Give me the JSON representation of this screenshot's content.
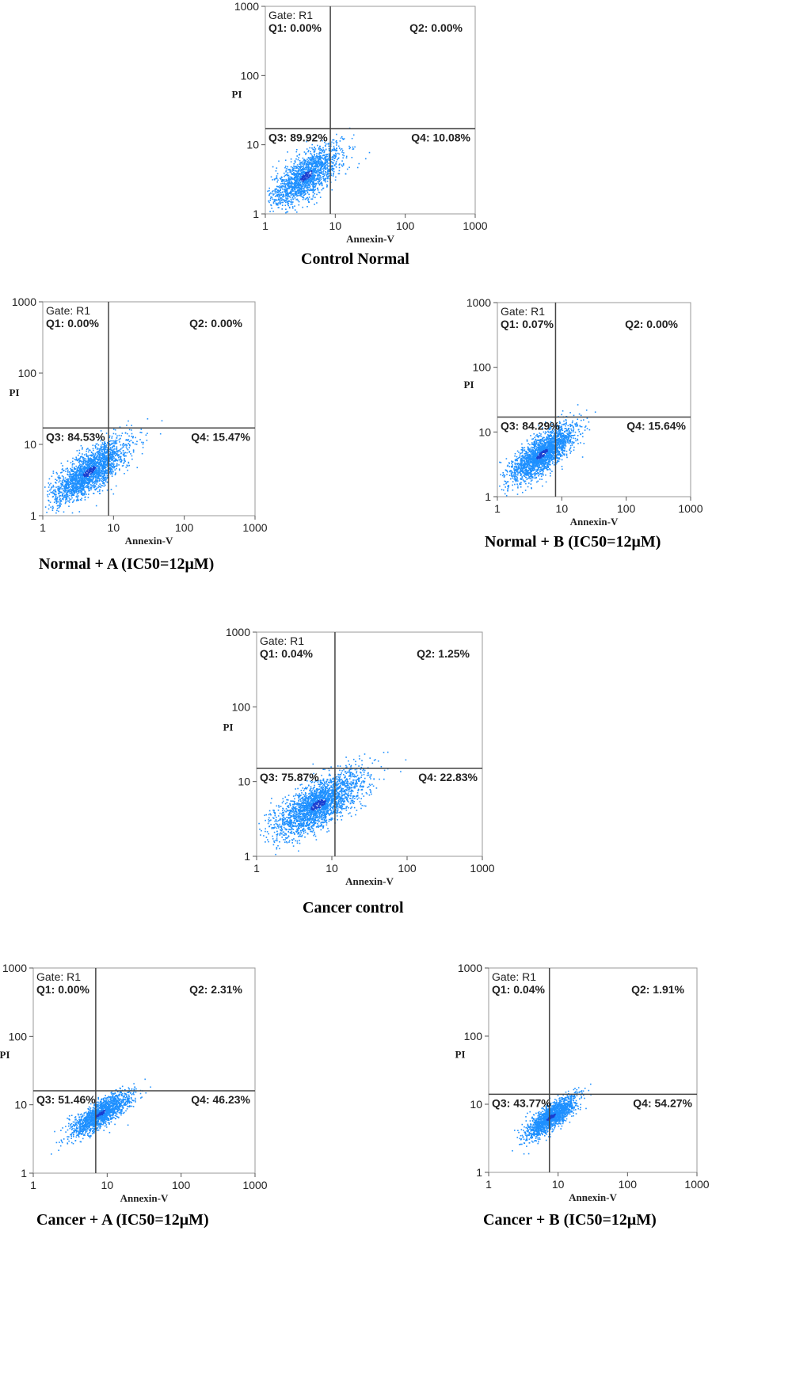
{
  "colors": {
    "dots": "#1e90ff",
    "dots_dense": "#1a3fd0",
    "gate_line": "#444444",
    "frame": "#9a9a9a"
  },
  "chart_data": [
    {
      "type": "scatter",
      "caption": "Control Normal",
      "xlabel": "Annexin-V",
      "ylabel": "PI",
      "scale": "log",
      "xlim": [
        1,
        1000
      ],
      "ylim": [
        1,
        1000
      ],
      "xticks": [
        "1",
        "10",
        "100",
        "1000"
      ],
      "yticks": [
        "1",
        "10",
        "100",
        "1000"
      ],
      "gate": "Gate: R1",
      "gate_x": 8.5,
      "gate_y": 17,
      "quadrants": {
        "q1": "Q1: 0.00%",
        "q2": "Q2: 0.00%",
        "q3": "Q3: 89.92%",
        "q4": "Q4: 10.08%"
      },
      "population": {
        "cx": 3.8,
        "cy": 3.6,
        "spread_x": 0.25,
        "spread_y": 0.22,
        "correlation": 0.7,
        "points": 1700
      }
    },
    {
      "type": "scatter",
      "caption": "Normal + A (IC50=12μM)",
      "xlabel": "Annexin-V",
      "ylabel": "PI",
      "scale": "log",
      "xlim": [
        1,
        1000
      ],
      "ylim": [
        1,
        1000
      ],
      "xticks": [
        "1",
        "10",
        "100",
        "1000"
      ],
      "yticks": [
        "1",
        "10",
        "100",
        "1000"
      ],
      "gate": "Gate: R1",
      "gate_x": 8.5,
      "gate_y": 17,
      "quadrants": {
        "q1": "Q1: 0.00%",
        "q2": "Q2: 0.00%",
        "q3": "Q3: 84.53%",
        "q4": "Q4: 15.47%"
      },
      "population": {
        "cx": 4.5,
        "cy": 4.2,
        "spread_x": 0.27,
        "spread_y": 0.22,
        "correlation": 0.75,
        "points": 2200
      }
    },
    {
      "type": "scatter",
      "caption": "Normal + B (IC50=12μM)",
      "xlabel": "Annexin-V",
      "ylabel": "PI",
      "scale": "log",
      "xlim": [
        1,
        1000
      ],
      "ylim": [
        1,
        1000
      ],
      "xticks": [
        "1",
        "10",
        "100",
        "1000"
      ],
      "yticks": [
        "1",
        "10",
        "100",
        "1000"
      ],
      "gate": "Gate: R1",
      "gate_x": 8,
      "gate_y": 17,
      "quadrants": {
        "q1": "Q1: 0.07%",
        "q2": "Q2: 0.00%",
        "q3": "Q3: 84.29%",
        "q4": "Q4: 15.64%"
      },
      "population": {
        "cx": 4.8,
        "cy": 4.6,
        "spread_x": 0.25,
        "spread_y": 0.22,
        "correlation": 0.75,
        "points": 2200
      }
    },
    {
      "type": "scatter",
      "caption": "Cancer control",
      "xlabel": "Annexin-V",
      "ylabel": "PI",
      "scale": "log",
      "xlim": [
        1,
        1000
      ],
      "ylim": [
        1,
        1000
      ],
      "xticks": [
        "1",
        "10",
        "100",
        "1000"
      ],
      "yticks": [
        "1",
        "10",
        "100",
        "1000"
      ],
      "gate": "Gate: R1",
      "gate_x": 11,
      "gate_y": 15,
      "quadrants": {
        "q1": "Q1: 0.04%",
        "q2": "Q2: 1.25%",
        "q3": "Q3: 75.87%",
        "q4": "Q4: 22.83%"
      },
      "population": {
        "cx": 6.5,
        "cy": 5.0,
        "spread_x": 0.3,
        "spread_y": 0.22,
        "correlation": 0.7,
        "points": 2400
      }
    },
    {
      "type": "scatter",
      "caption": "Cancer + A (IC50=12μM)",
      "xlabel": "Annexin-V",
      "ylabel": "PI",
      "scale": "log",
      "xlim": [
        1,
        1000
      ],
      "ylim": [
        1,
        1000
      ],
      "xticks": [
        "1",
        "10",
        "100",
        "1000"
      ],
      "yticks": [
        "1",
        "10",
        "100",
        "1000"
      ],
      "gate": "Gate: R1",
      "gate_x": 7,
      "gate_y": 16,
      "quadrants": {
        "q1": "Q1: 0.00%",
        "q2": "Q2: 2.31%",
        "q3": "Q3: 51.46%",
        "q4": "Q4: 46.23%"
      },
      "population": {
        "cx": 8.0,
        "cy": 7.5,
        "spread_x": 0.2,
        "spread_y": 0.16,
        "correlation": 0.8,
        "points": 1600
      }
    },
    {
      "type": "scatter",
      "caption": "Cancer + B (IC50=12μM)",
      "xlabel": "Annexin-V",
      "ylabel": "PI",
      "scale": "log",
      "xlim": [
        1,
        1000
      ],
      "ylim": [
        1,
        1000
      ],
      "xticks": [
        "1",
        "10",
        "100",
        "1000"
      ],
      "yticks": [
        "1",
        "10",
        "100",
        "1000"
      ],
      "gate": "Gate: R1",
      "gate_x": 7.5,
      "gate_y": 14,
      "quadrants": {
        "q1": "Q1: 0.04%",
        "q2": "Q2: 1.91%",
        "q3": "Q3: 43.77%",
        "q4": "Q4: 54.27%"
      },
      "population": {
        "cx": 7.8,
        "cy": 6.6,
        "spread_x": 0.18,
        "spread_y": 0.15,
        "correlation": 0.8,
        "points": 1700
      }
    }
  ]
}
